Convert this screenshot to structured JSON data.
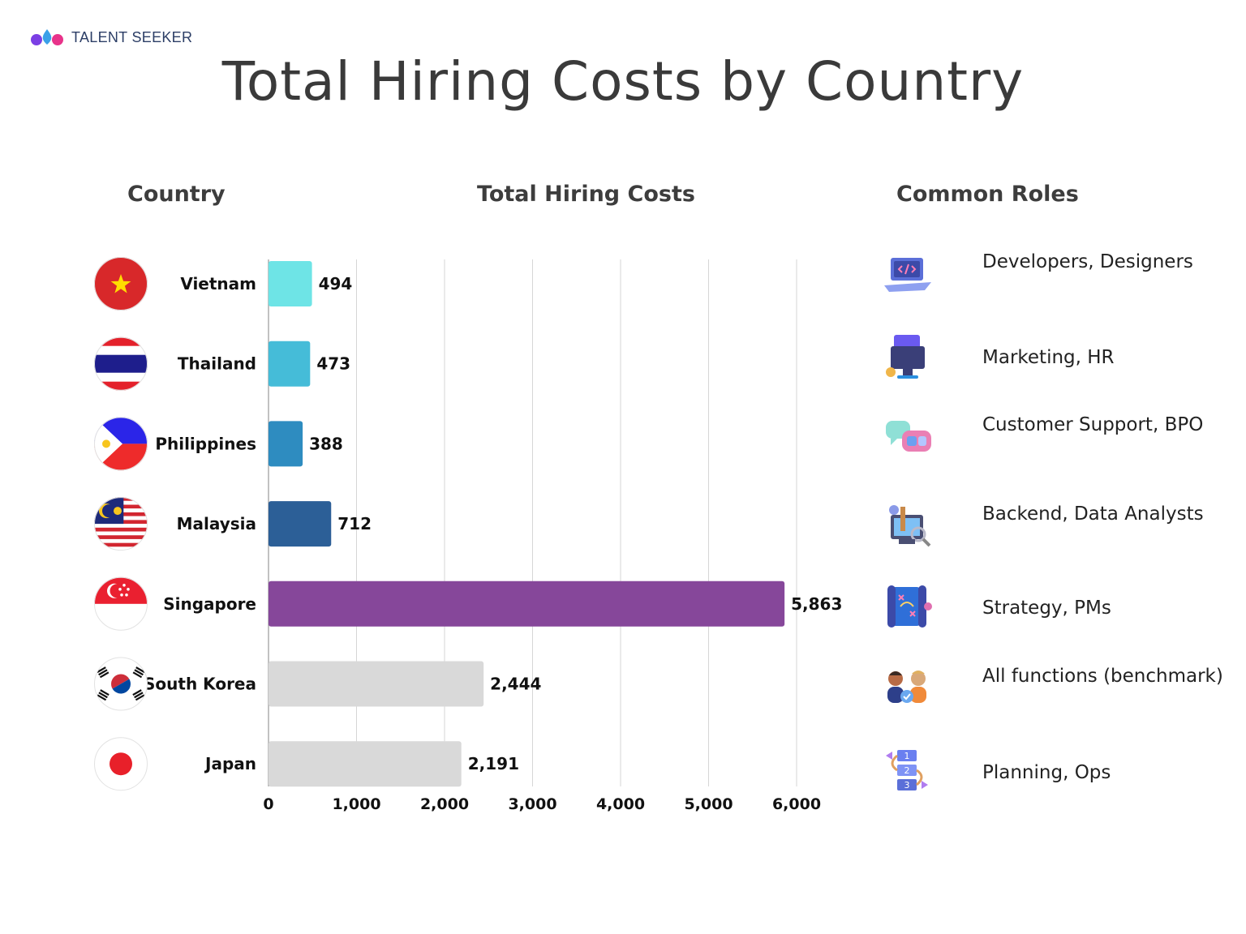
{
  "brand": {
    "name": "TALENT SEEKER"
  },
  "title": "Total Hiring Costs by Country",
  "headers": {
    "country": "Country",
    "costs": "Total Hiring Costs",
    "roles": "Common Roles"
  },
  "chart_data": {
    "type": "bar",
    "orientation": "horizontal",
    "title": "Total Hiring Costs by Country",
    "xlabel": "",
    "ylabel": "",
    "xlim": [
      0,
      6000
    ],
    "x_ticks": [
      "0",
      "1,000",
      "2,000",
      "3,000",
      "4,000",
      "5,000",
      "6,000"
    ],
    "grid": true,
    "categories": [
      "Vietnam",
      "Thailand",
      "Philippines",
      "Malaysia",
      "Singapore",
      "South Korea",
      "Japan"
    ],
    "values": [
      494,
      473,
      388,
      712,
      5863,
      2444,
      2191
    ],
    "value_labels": [
      "494",
      "473",
      "388",
      "712",
      "5,863",
      "2,444",
      "2,191"
    ],
    "bar_colors": [
      "#6ee4e6",
      "#45bcd8",
      "#2e8cc0",
      "#2c5f97",
      "#86479a",
      "#d9d9d9",
      "#d9d9d9"
    ]
  },
  "roles": [
    {
      "label": "Developers, Designers",
      "icon": "laptop-code-icon"
    },
    {
      "label": "Marketing, HR",
      "icon": "ads-monitor-icon"
    },
    {
      "label": "Customer Support, BPO",
      "icon": "chat-bubbles-icon"
    },
    {
      "label": "Backend, Data Analysts",
      "icon": "data-analysis-icon"
    },
    {
      "label": "Strategy, PMs",
      "icon": "strategy-map-icon"
    },
    {
      "label": "All functions (benchmark)",
      "icon": "people-benchmark-icon"
    },
    {
      "label": "Planning, Ops",
      "icon": "planning-steps-icon"
    }
  ],
  "flags": [
    "vietnam-flag-icon",
    "thailand-flag-icon",
    "philippines-flag-icon",
    "malaysia-flag-icon",
    "singapore-flag-icon",
    "south-korea-flag-icon",
    "japan-flag-icon"
  ]
}
